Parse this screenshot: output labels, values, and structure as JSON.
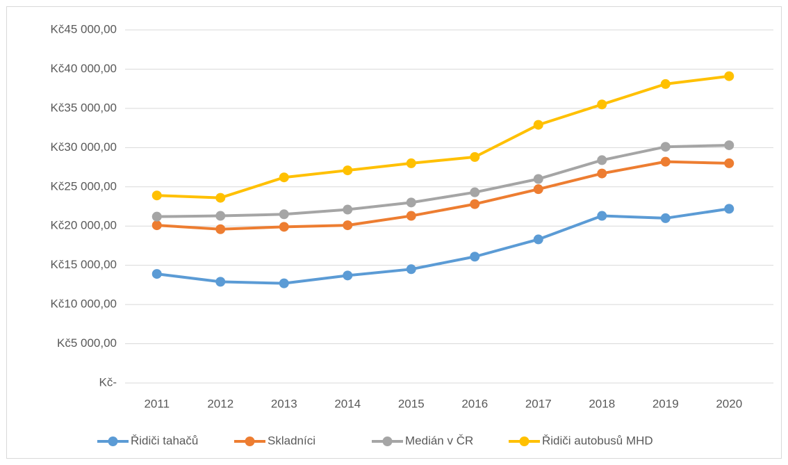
{
  "chart_data": {
    "type": "line",
    "categories": [
      "2011",
      "2012",
      "2013",
      "2014",
      "2015",
      "2016",
      "2017",
      "2018",
      "2019",
      "2020"
    ],
    "series": [
      {
        "name": "Řidiči tahačů",
        "color": "#5b9bd5",
        "values": [
          13900,
          12900,
          12700,
          13700,
          14500,
          16100,
          18300,
          21300,
          21000,
          22200
        ]
      },
      {
        "name": "Skladníci",
        "color": "#ed7d31",
        "values": [
          20100,
          19600,
          19900,
          20100,
          21300,
          22800,
          24700,
          26700,
          28200,
          28000
        ]
      },
      {
        "name": "Medián v ČR",
        "color": "#a5a5a5",
        "values": [
          21200,
          21300,
          21500,
          22100,
          23000,
          24300,
          26000,
          28400,
          30100,
          30300
        ]
      },
      {
        "name": "Řidiči autobusů MHD",
        "color": "#ffc000",
        "values": [
          23900,
          23600,
          26200,
          27100,
          28000,
          28800,
          32900,
          35500,
          38100,
          39100
        ]
      }
    ],
    "ylim": [
      0,
      45000
    ],
    "yticks": [
      {
        "value": 0,
        "label": "Kč-"
      },
      {
        "value": 5000,
        "label": "Kč5 000,00"
      },
      {
        "value": 10000,
        "label": "Kč10 000,00"
      },
      {
        "value": 15000,
        "label": "Kč15 000,00"
      },
      {
        "value": 20000,
        "label": "Kč20 000,00"
      },
      {
        "value": 25000,
        "label": "Kč25 000,00"
      },
      {
        "value": 30000,
        "label": "Kč30 000,00"
      },
      {
        "value": 35000,
        "label": "Kč35 000,00"
      },
      {
        "value": 40000,
        "label": "Kč40 000,00"
      },
      {
        "value": 45000,
        "label": "Kč45 000,00"
      }
    ],
    "grid": true,
    "legend": "bottom"
  }
}
